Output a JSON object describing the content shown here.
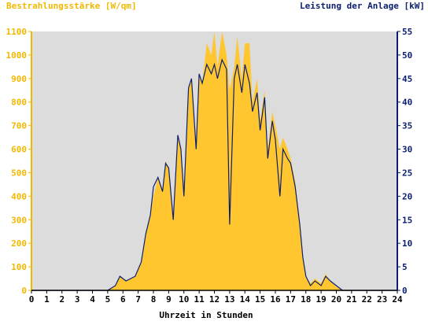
{
  "chart_data": {
    "type": "area",
    "left_axis_label": "Bestrahlungsstärke [W/qm]",
    "right_axis_label": "Leistung der Anlage [kW]",
    "xlabel": "Uhrzeit in Stunden",
    "xlim": [
      0,
      24
    ],
    "ylim_left": [
      0,
      1100
    ],
    "ylim_right": [
      0,
      55
    ],
    "x_ticks": [
      "0",
      "1",
      "2",
      "3",
      "4",
      "5",
      "6",
      "7",
      "8",
      "9",
      "10",
      "11",
      "12",
      "13",
      "14",
      "15",
      "16",
      "17",
      "18",
      "19",
      "20",
      "21",
      "22",
      "23",
      "24"
    ],
    "y_left_ticks": [
      "0",
      "100",
      "200",
      "300",
      "400",
      "500",
      "600",
      "700",
      "800",
      "900",
      "1000",
      "1100"
    ],
    "y_right_ticks": [
      "0",
      "5",
      "10",
      "15",
      "20",
      "25",
      "30",
      "35",
      "40",
      "45",
      "50",
      "55"
    ],
    "grid": false,
    "colors": {
      "background": "#dcdcdc",
      "irradiance": "#ffc62f",
      "power": "#0b1f6e",
      "left_axis": "#f2b800",
      "right_axis": "#0b1f6e"
    },
    "series": [
      {
        "name": "Bestrahlungsstärke [W/qm]",
        "axis": "left",
        "style": "area",
        "x": [
          0,
          5,
          5.5,
          5.8,
          6.2,
          6.8,
          7.2,
          7.5,
          7.8,
          8.0,
          8.3,
          8.6,
          8.8,
          9.0,
          9.3,
          9.6,
          9.8,
          10.0,
          10.3,
          10.5,
          10.8,
          11.0,
          11.2,
          11.5,
          11.8,
          12.0,
          12.2,
          12.5,
          12.8,
          13.0,
          13.3,
          13.5,
          13.8,
          14.0,
          14.3,
          14.5,
          14.8,
          15.0,
          15.3,
          15.5,
          15.8,
          16.0,
          16.3,
          16.5,
          16.8,
          17.0,
          17.3,
          17.6,
          17.8,
          18.0,
          18.3,
          18.6,
          19.0,
          19.3,
          19.6,
          20.0,
          20.4,
          24
        ],
        "values": [
          0,
          0,
          20,
          60,
          40,
          60,
          120,
          250,
          320,
          400,
          480,
          430,
          550,
          520,
          300,
          650,
          600,
          400,
          850,
          900,
          600,
          920,
          880,
          1050,
          1000,
          1100,
          950,
          1100,
          1000,
          850,
          950,
          1080,
          900,
          1050,
          1050,
          800,
          900,
          720,
          850,
          600,
          760,
          700,
          600,
          650,
          600,
          560,
          460,
          300,
          150,
          60,
          30,
          50,
          30,
          70,
          40,
          15,
          0,
          0
        ]
      },
      {
        "name": "Leistung der Anlage [kW]",
        "axis": "right",
        "style": "line",
        "x": [
          0,
          5,
          5.5,
          5.8,
          6.2,
          6.8,
          7.2,
          7.5,
          7.8,
          8.0,
          8.3,
          8.6,
          8.8,
          9.0,
          9.3,
          9.6,
          9.8,
          10.0,
          10.3,
          10.5,
          10.8,
          11.0,
          11.2,
          11.5,
          11.8,
          12.0,
          12.2,
          12.5,
          12.8,
          13.0,
          13.3,
          13.5,
          13.8,
          14.0,
          14.3,
          14.5,
          14.8,
          15.0,
          15.3,
          15.5,
          15.8,
          16.0,
          16.3,
          16.5,
          16.8,
          17.0,
          17.3,
          17.6,
          17.8,
          18.0,
          18.3,
          18.6,
          19.0,
          19.3,
          19.6,
          20.0,
          20.4,
          24
        ],
        "values": [
          0,
          0,
          1,
          3,
          2,
          3,
          6,
          12,
          16,
          22,
          24,
          21,
          27,
          26,
          15,
          33,
          30,
          20,
          43,
          45,
          30,
          46,
          44,
          48,
          46,
          48,
          45,
          49,
          47,
          14,
          45,
          48,
          42,
          48,
          44,
          38,
          42,
          34,
          41,
          28,
          36,
          32,
          20,
          30,
          28,
          27,
          22,
          14,
          7,
          3,
          1,
          2,
          1,
          3,
          2,
          1,
          0,
          0
        ]
      }
    ]
  }
}
